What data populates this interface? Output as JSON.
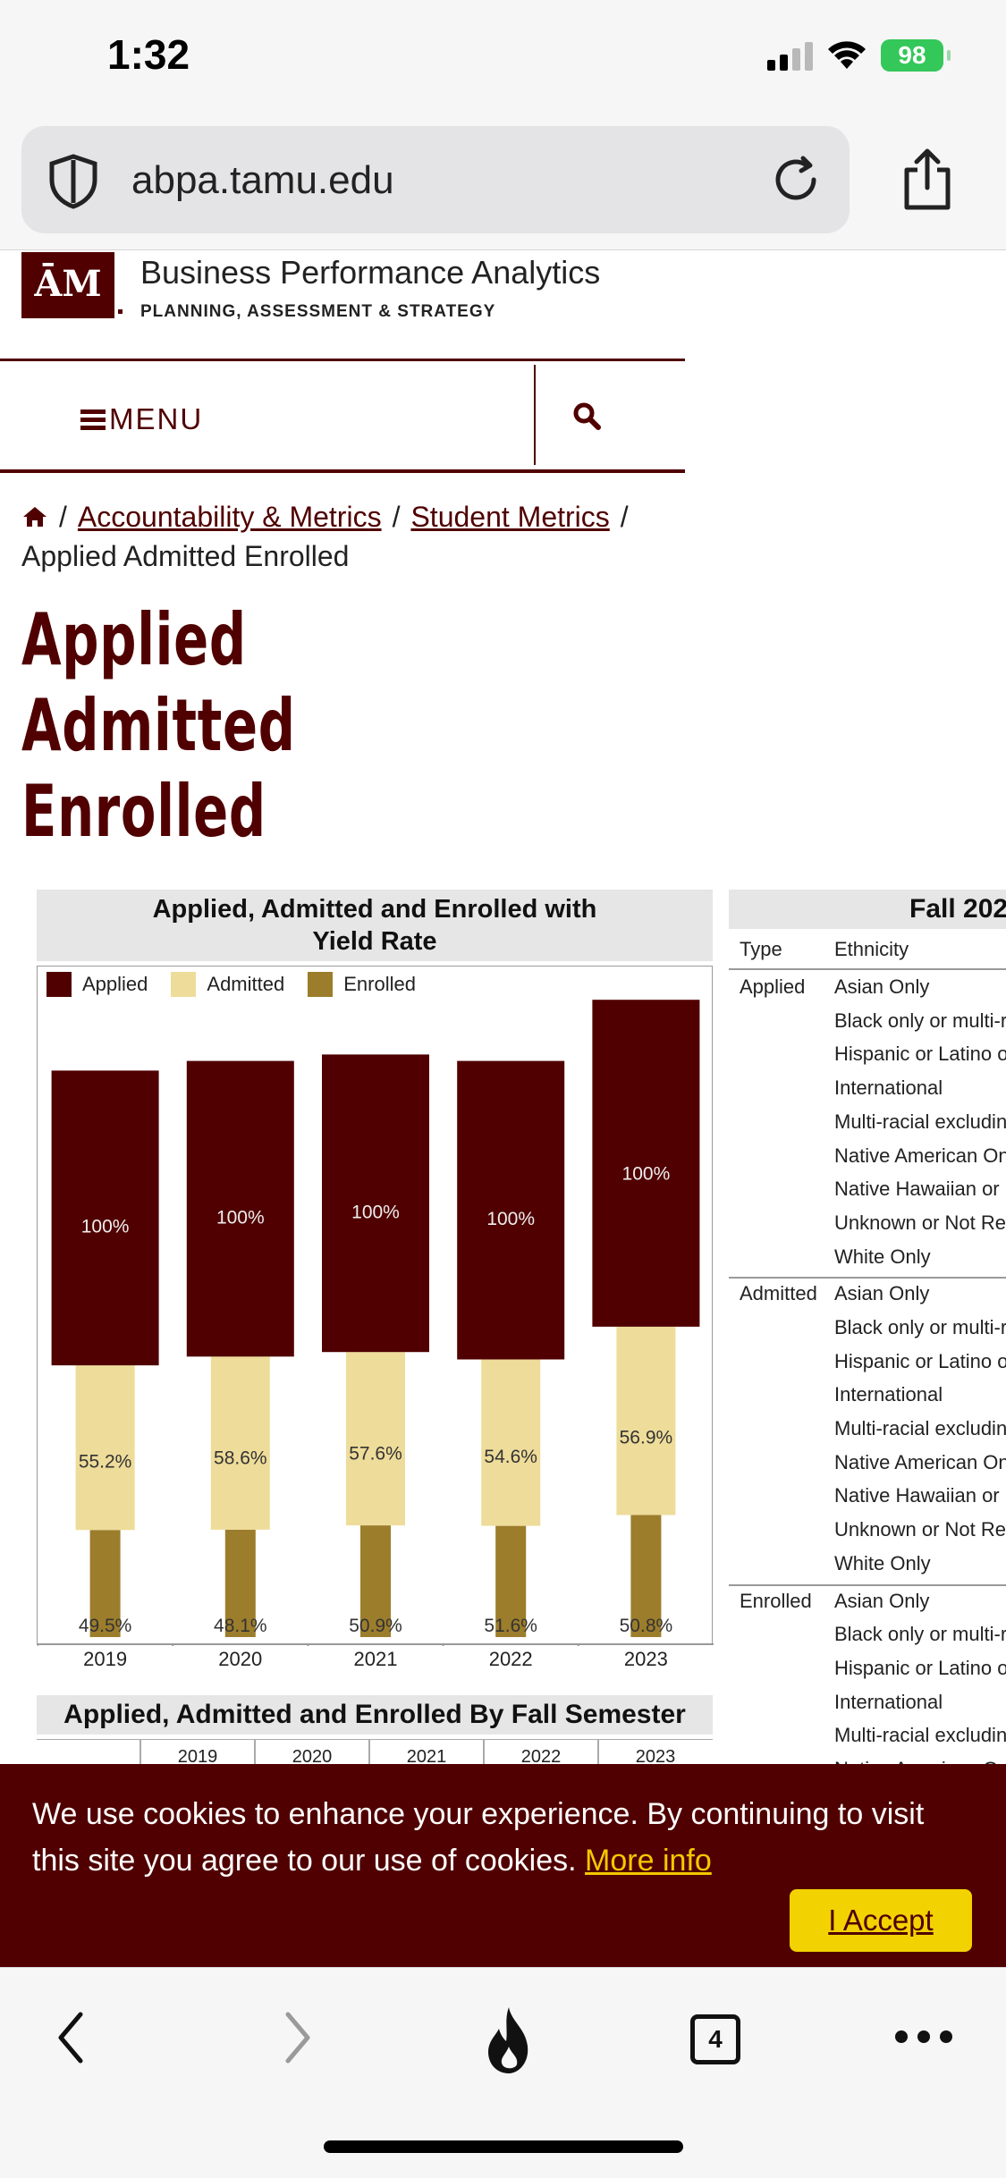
{
  "status_bar": {
    "time": "1:32",
    "battery": "98"
  },
  "browser": {
    "url": "abpa.tamu.edu",
    "tab_count": "4"
  },
  "site": {
    "logo_text": "ĀM",
    "title": "Business Performance Analytics",
    "subtitle": "PLANNING, ASSESSMENT & STRATEGY"
  },
  "nav": {
    "menu_label": "MENU"
  },
  "breadcrumb": {
    "items": [
      "Accountability & Metrics",
      "Student Metrics"
    ],
    "current": "Applied Admitted Enrolled",
    "separator": "/"
  },
  "page_title": "Applied Admitted Enrolled",
  "chart_data": {
    "type": "bar",
    "title": "Applied, Admitted and Enrolled with Yield Rate",
    "categories": [
      "2019",
      "2020",
      "2021",
      "2022",
      "2023"
    ],
    "series": [
      {
        "name": "Applied",
        "color": "#500000",
        "labels": [
          "100%",
          "100%",
          "100%",
          "100%",
          "100%"
        ],
        "relative_height": [
          0.88,
          0.895,
          0.905,
          0.895,
          0.99
        ]
      },
      {
        "name": "Admitted",
        "color": "#eedc9a",
        "labels": [
          "55.2%",
          "58.6%",
          "57.6%",
          "54.6%",
          "56.9%"
        ]
      },
      {
        "name": "Enrolled",
        "color": "#9c7d2c",
        "labels": [
          "49.5%",
          "48.1%",
          "50.9%",
          "51.6%",
          "50.8%"
        ]
      }
    ],
    "legend_position": "top-left",
    "grid": false
  },
  "table2": {
    "title": "Applied, Admitted and Enrolled By Fall Semester",
    "years": [
      "2019",
      "2020",
      "2021",
      "2022",
      "2023"
    ]
  },
  "right_table": {
    "title": "Fall 202",
    "headers": [
      "Type",
      "Ethnicity"
    ],
    "groups": [
      {
        "type": "Applied",
        "rows": [
          "Asian Only",
          "Black only or multi-r",
          "Hispanic or Latino o",
          "International",
          "Multi-racial excludin",
          "Native American On",
          "Native Hawaiian or I",
          "Unknown or Not Re",
          "White Only"
        ]
      },
      {
        "type": "Admitted",
        "rows": [
          "Asian Only",
          "Black only or multi-r",
          "Hispanic or Latino o",
          "International",
          "Multi-racial excludin",
          "Native American On",
          "Native Hawaiian or I",
          "Unknown or Not Re",
          "White Only"
        ]
      },
      {
        "type": "Enrolled",
        "rows": [
          "Asian Only",
          "Black only or multi-r",
          "Hispanic or Latino o",
          "International",
          "Multi-racial excludin",
          "Native American On"
        ]
      }
    ]
  },
  "cookie": {
    "text": "We use cookies to enhance your experience. By continuing to visit this site you agree to our use of cookies.",
    "link": "More info",
    "accept": "I Accept"
  },
  "colors": {
    "maroon": "#500000",
    "accept_yellow": "#f2d200",
    "link_yellow": "#f4c800"
  }
}
